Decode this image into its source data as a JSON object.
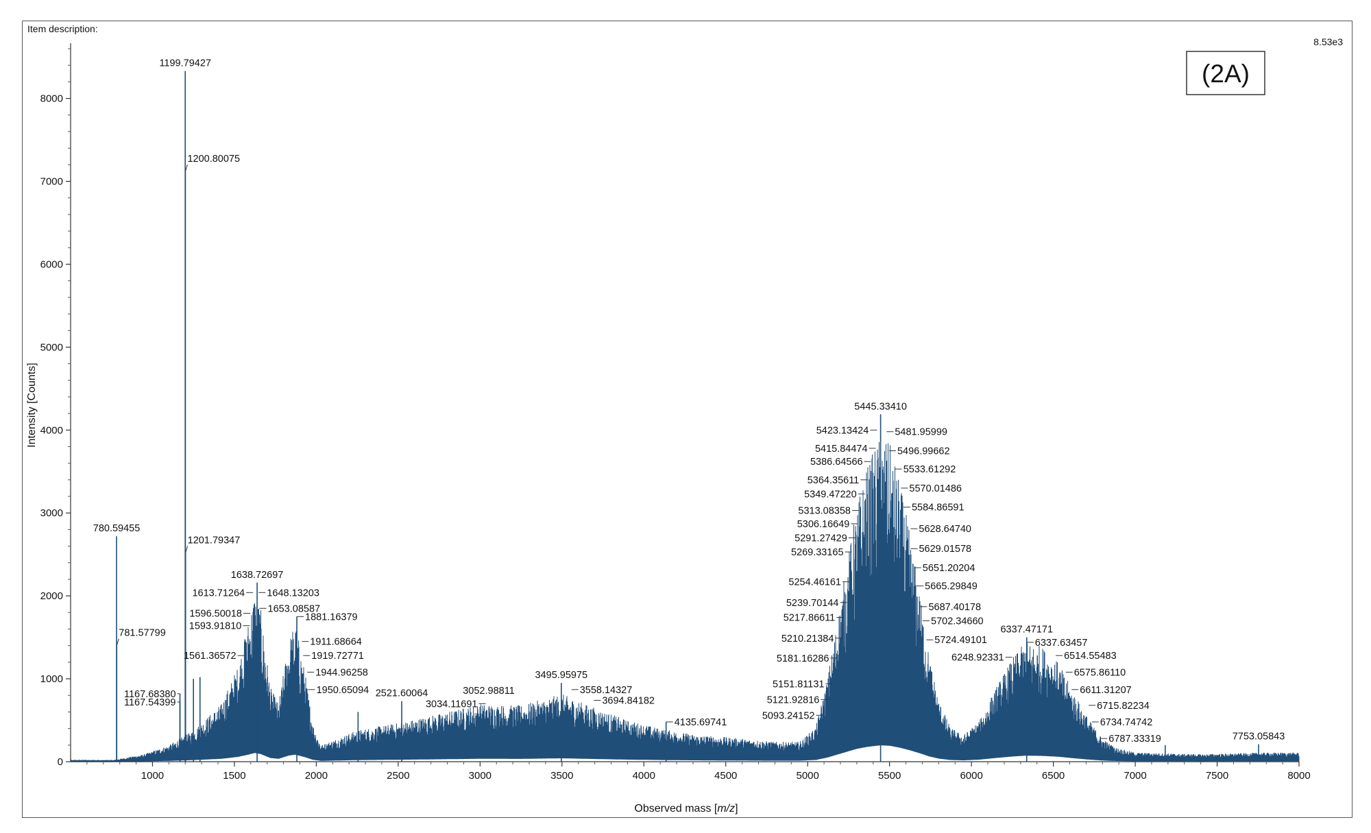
{
  "header": {
    "item_description": "Item description:",
    "scale_max": "8.53e3",
    "panel_tag": "(2A)"
  },
  "chart_data": {
    "type": "line",
    "title": "",
    "xlabel": "Observed mass [m/z]",
    "xlabel_main": "Observed mass [",
    "xlabel_italic": "m/z",
    "xlabel_end": "]",
    "ylabel": "Intensity [Counts]",
    "xlim": [
      500,
      8000
    ],
    "ylim": [
      0,
      8600
    ],
    "x_ticks": [
      1000,
      1500,
      2000,
      2500,
      3000,
      3500,
      4000,
      4500,
      5000,
      5500,
      6000,
      6500,
      7000,
      7500,
      8000
    ],
    "y_ticks": [
      0,
      1000,
      2000,
      3000,
      4000,
      5000,
      6000,
      7000,
      8000
    ],
    "grid": false,
    "series_color": "#1f4e79",
    "envelope": [
      [
        520,
        20
      ],
      [
        760,
        20
      ],
      [
        950,
        90
      ],
      [
        1100,
        200
      ],
      [
        1250,
        380
      ],
      [
        1420,
        700
      ],
      [
        1520,
        1150
      ],
      [
        1580,
        1650
      ],
      [
        1625,
        2100
      ],
      [
        1660,
        1850
      ],
      [
        1720,
        900
      ],
      [
        1770,
        700
      ],
      [
        1830,
        1450
      ],
      [
        1870,
        1700
      ],
      [
        1930,
        1100
      ],
      [
        1980,
        450
      ],
      [
        2030,
        200
      ],
      [
        2100,
        260
      ],
      [
        2250,
        380
      ],
      [
        2500,
        470
      ],
      [
        2750,
        580
      ],
      [
        3000,
        700
      ],
      [
        3250,
        680
      ],
      [
        3500,
        820
      ],
      [
        3700,
        650
      ],
      [
        3900,
        500
      ],
      [
        4100,
        400
      ],
      [
        4300,
        330
      ],
      [
        4600,
        280
      ],
      [
        4800,
        240
      ],
      [
        4950,
        240
      ],
      [
        5050,
        420
      ],
      [
        5120,
        1000
      ],
      [
        5180,
        1700
      ],
      [
        5240,
        2400
      ],
      [
        5300,
        3100
      ],
      [
        5360,
        3550
      ],
      [
        5420,
        3850
      ],
      [
        5450,
        3950
      ],
      [
        5500,
        3850
      ],
      [
        5560,
        3400
      ],
      [
        5620,
        2800
      ],
      [
        5680,
        2100
      ],
      [
        5740,
        1300
      ],
      [
        5800,
        750
      ],
      [
        5870,
        420
      ],
      [
        5950,
        320
      ],
      [
        6050,
        500
      ],
      [
        6150,
        900
      ],
      [
        6250,
        1250
      ],
      [
        6330,
        1450
      ],
      [
        6430,
        1400
      ],
      [
        6530,
        1200
      ],
      [
        6620,
        850
      ],
      [
        6720,
        500
      ],
      [
        6800,
        280
      ],
      [
        6880,
        170
      ],
      [
        7000,
        110
      ],
      [
        7400,
        90
      ],
      [
        7800,
        110
      ],
      [
        8000,
        110
      ]
    ],
    "spikes": [
      [
        780.59455,
        2720
      ],
      [
        781.57799,
        1400
      ],
      [
        1167.54399,
        720
      ],
      [
        1167.6838,
        820
      ],
      [
        1199.79427,
        8330
      ],
      [
        1200.80075,
        7120
      ],
      [
        1201.79347,
        2520
      ],
      [
        1250,
        1000
      ],
      [
        1290,
        1020
      ],
      [
        1638.72697,
        2160
      ],
      [
        1881.16379,
        1750
      ],
      [
        2255,
        600
      ],
      [
        2521.60064,
        730
      ],
      [
        3495.95975,
        950
      ],
      [
        4135.69741,
        480
      ],
      [
        5445.3341,
        4190
      ],
      [
        6337.47171,
        1500
      ],
      [
        7183,
        200
      ],
      [
        7753.05843,
        210
      ]
    ],
    "peak_labels": [
      {
        "label": "1199.79427",
        "x": 1199.79427,
        "y": 8330,
        "pos": "above"
      },
      {
        "label": "1200.80075",
        "x": 1200.80075,
        "y": 7120,
        "pos": "rightlead"
      },
      {
        "label": "1201.79347",
        "x": 1201.79347,
        "y": 2520,
        "pos": "rightlead"
      },
      {
        "label": "780.59455",
        "x": 780.59455,
        "y": 2720,
        "pos": "above"
      },
      {
        "label": "781.57799",
        "x": 781.57799,
        "y": 1400,
        "pos": "rightlead"
      },
      {
        "label": "1167.68380",
        "x": 1167.6838,
        "y": 820,
        "pos": "leftlead"
      },
      {
        "label": "1167.54399",
        "x": 1167.54399,
        "y": 720,
        "pos": "leftlead"
      },
      {
        "label": "1638.72697",
        "x": 1638.72697,
        "y": 2160,
        "pos": "above"
      },
      {
        "label": "1613.71264",
        "x": 1613.71264,
        "y": 2040,
        "pos": "left"
      },
      {
        "label": "1596.50018",
        "x": 1596.50018,
        "y": 1790,
        "pos": "left"
      },
      {
        "label": "1593.91810",
        "x": 1593.9181,
        "y": 1640,
        "pos": "left"
      },
      {
        "label": "1561.36572",
        "x": 1561.36572,
        "y": 1280,
        "pos": "left"
      },
      {
        "label": "1648.13203",
        "x": 1648.13203,
        "y": 2040,
        "pos": "right"
      },
      {
        "label": "1653.08587",
        "x": 1653.08587,
        "y": 1850,
        "pos": "right"
      },
      {
        "label": "1881.16379",
        "x": 1881.16379,
        "y": 1750,
        "pos": "right"
      },
      {
        "label": "1911.68664",
        "x": 1911.68664,
        "y": 1450,
        "pos": "right"
      },
      {
        "label": "1919.72771",
        "x": 1919.72771,
        "y": 1280,
        "pos": "right"
      },
      {
        "label": "1944.96258",
        "x": 1944.96258,
        "y": 1080,
        "pos": "right"
      },
      {
        "label": "1950.65094",
        "x": 1950.65094,
        "y": 870,
        "pos": "right"
      },
      {
        "label": "2521.60064",
        "x": 2521.60064,
        "y": 730,
        "pos": "above"
      },
      {
        "label": "3052.98811",
        "x": 3052.98811,
        "y": 760,
        "pos": "above"
      },
      {
        "label": "3034.11691",
        "x": 3034.11691,
        "y": 700,
        "pos": "left"
      },
      {
        "label": "3495.95975",
        "x": 3495.95975,
        "y": 950,
        "pos": "above"
      },
      {
        "label": "3558.14327",
        "x": 3558.14327,
        "y": 870,
        "pos": "right"
      },
      {
        "label": "3694.84182",
        "x": 3694.84182,
        "y": 740,
        "pos": "right"
      },
      {
        "label": "4135.69741",
        "x": 4135.69741,
        "y": 480,
        "pos": "right"
      },
      {
        "label": "5445.33410",
        "x": 5445.3341,
        "y": 4190,
        "pos": "above"
      },
      {
        "label": "5423.13424",
        "x": 5423.13424,
        "y": 4000,
        "pos": "left"
      },
      {
        "label": "5415.84474",
        "x": 5415.84474,
        "y": 3780,
        "pos": "left"
      },
      {
        "label": "5386.64566",
        "x": 5386.64566,
        "y": 3620,
        "pos": "left"
      },
      {
        "label": "5364.35611",
        "x": 5364.35611,
        "y": 3400,
        "pos": "left"
      },
      {
        "label": "5349.47220",
        "x": 5349.4722,
        "y": 3230,
        "pos": "left"
      },
      {
        "label": "5313.08358",
        "x": 5313.08358,
        "y": 3030,
        "pos": "left"
      },
      {
        "label": "5306.16649",
        "x": 5306.16649,
        "y": 2870,
        "pos": "left"
      },
      {
        "label": "5291.27429",
        "x": 5291.27429,
        "y": 2700,
        "pos": "left"
      },
      {
        "label": "5269.33165",
        "x": 5269.33165,
        "y": 2530,
        "pos": "left"
      },
      {
        "label": "5254.46161",
        "x": 5254.46161,
        "y": 2170,
        "pos": "left"
      },
      {
        "label": "5239.70144",
        "x": 5239.70144,
        "y": 1920,
        "pos": "left"
      },
      {
        "label": "5217.86611",
        "x": 5217.86611,
        "y": 1740,
        "pos": "left"
      },
      {
        "label": "5210.21384",
        "x": 5210.21384,
        "y": 1490,
        "pos": "left"
      },
      {
        "label": "5181.16286",
        "x": 5181.16286,
        "y": 1250,
        "pos": "left"
      },
      {
        "label": "5151.81131",
        "x": 5151.81131,
        "y": 940,
        "pos": "left"
      },
      {
        "label": "5121.92816",
        "x": 5121.92816,
        "y": 750,
        "pos": "left"
      },
      {
        "label": "5093.24152",
        "x": 5093.24152,
        "y": 560,
        "pos": "left"
      },
      {
        "label": "5481.95999",
        "x": 5481.95999,
        "y": 3980,
        "pos": "right"
      },
      {
        "label": "5496.99662",
        "x": 5496.99662,
        "y": 3750,
        "pos": "right"
      },
      {
        "label": "5533.61292",
        "x": 5533.61292,
        "y": 3530,
        "pos": "right"
      },
      {
        "label": "5570.01486",
        "x": 5570.01486,
        "y": 3300,
        "pos": "right"
      },
      {
        "label": "5584.86591",
        "x": 5584.86591,
        "y": 3070,
        "pos": "right"
      },
      {
        "label": "5628.64740",
        "x": 5628.6474,
        "y": 2810,
        "pos": "right"
      },
      {
        "label": "5629.01578",
        "x": 5629.01578,
        "y": 2570,
        "pos": "right"
      },
      {
        "label": "5651.20204",
        "x": 5651.20204,
        "y": 2340,
        "pos": "right"
      },
      {
        "label": "5665.29849",
        "x": 5665.29849,
        "y": 2120,
        "pos": "right"
      },
      {
        "label": "5687.40178",
        "x": 5687.40178,
        "y": 1870,
        "pos": "right"
      },
      {
        "label": "5702.34660",
        "x": 5702.3466,
        "y": 1700,
        "pos": "right"
      },
      {
        "label": "5724.49101",
        "x": 5724.49101,
        "y": 1470,
        "pos": "right"
      },
      {
        "label": "6337.47171",
        "x": 6337.47171,
        "y": 1500,
        "pos": "above"
      },
      {
        "label": "6248.92331",
        "x": 6248.92331,
        "y": 1260,
        "pos": "left"
      },
      {
        "label": "6337.63457",
        "x": 6337.63457,
        "y": 1440,
        "pos": "right"
      },
      {
        "label": "6514.55483",
        "x": 6514.55483,
        "y": 1280,
        "pos": "right"
      },
      {
        "label": "6575.86110",
        "x": 6575.8611,
        "y": 1080,
        "pos": "right"
      },
      {
        "label": "6611.31207",
        "x": 6611.31207,
        "y": 870,
        "pos": "right"
      },
      {
        "label": "6715.82234",
        "x": 6715.82234,
        "y": 680,
        "pos": "right"
      },
      {
        "label": "6734.74742",
        "x": 6734.74742,
        "y": 480,
        "pos": "right"
      },
      {
        "label": "6787.33319",
        "x": 6787.33319,
        "y": 280,
        "pos": "right"
      },
      {
        "label": "7753.05843",
        "x": 7753.05843,
        "y": 210,
        "pos": "above"
      }
    ]
  }
}
